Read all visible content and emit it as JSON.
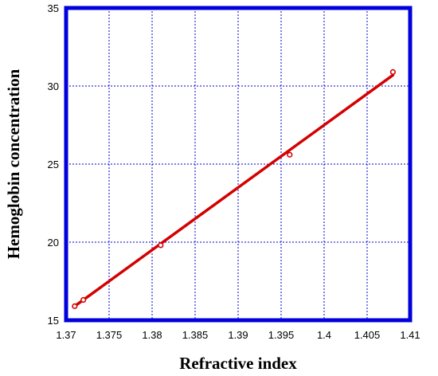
{
  "chart_data": {
    "type": "scatter",
    "xlabel": "Refractive index",
    "ylabel": "Hemoglobin concentration",
    "xlim": [
      1.37,
      1.41
    ],
    "ylim": [
      15,
      35
    ],
    "x_ticks": [
      1.37,
      1.375,
      1.38,
      1.385,
      1.39,
      1.395,
      1.4,
      1.405,
      1.41
    ],
    "x_tick_labels": [
      "1.37",
      "1.375",
      "1.38",
      "1.385",
      "1.39",
      "1.395",
      "1.4",
      "1.405",
      "1.41"
    ],
    "y_ticks": [
      15,
      20,
      25,
      30,
      35
    ],
    "y_tick_labels": [
      "15",
      "20",
      "25",
      "30",
      "35"
    ],
    "grid": true,
    "series": [
      {
        "type": "scatter",
        "points": [
          {
            "x": 1.371,
            "y": 15.9
          },
          {
            "x": 1.372,
            "y": 16.3
          },
          {
            "x": 1.381,
            "y": 19.8
          },
          {
            "x": 1.396,
            "y": 25.6
          },
          {
            "x": 1.408,
            "y": 30.9
          }
        ]
      },
      {
        "type": "line",
        "points": [
          {
            "x": 1.371,
            "y": 15.9
          },
          {
            "x": 1.408,
            "y": 30.7
          }
        ]
      }
    ],
    "colors": {
      "frame": "#0000dd",
      "grid": "#0000cc",
      "series": "#d40000"
    }
  }
}
